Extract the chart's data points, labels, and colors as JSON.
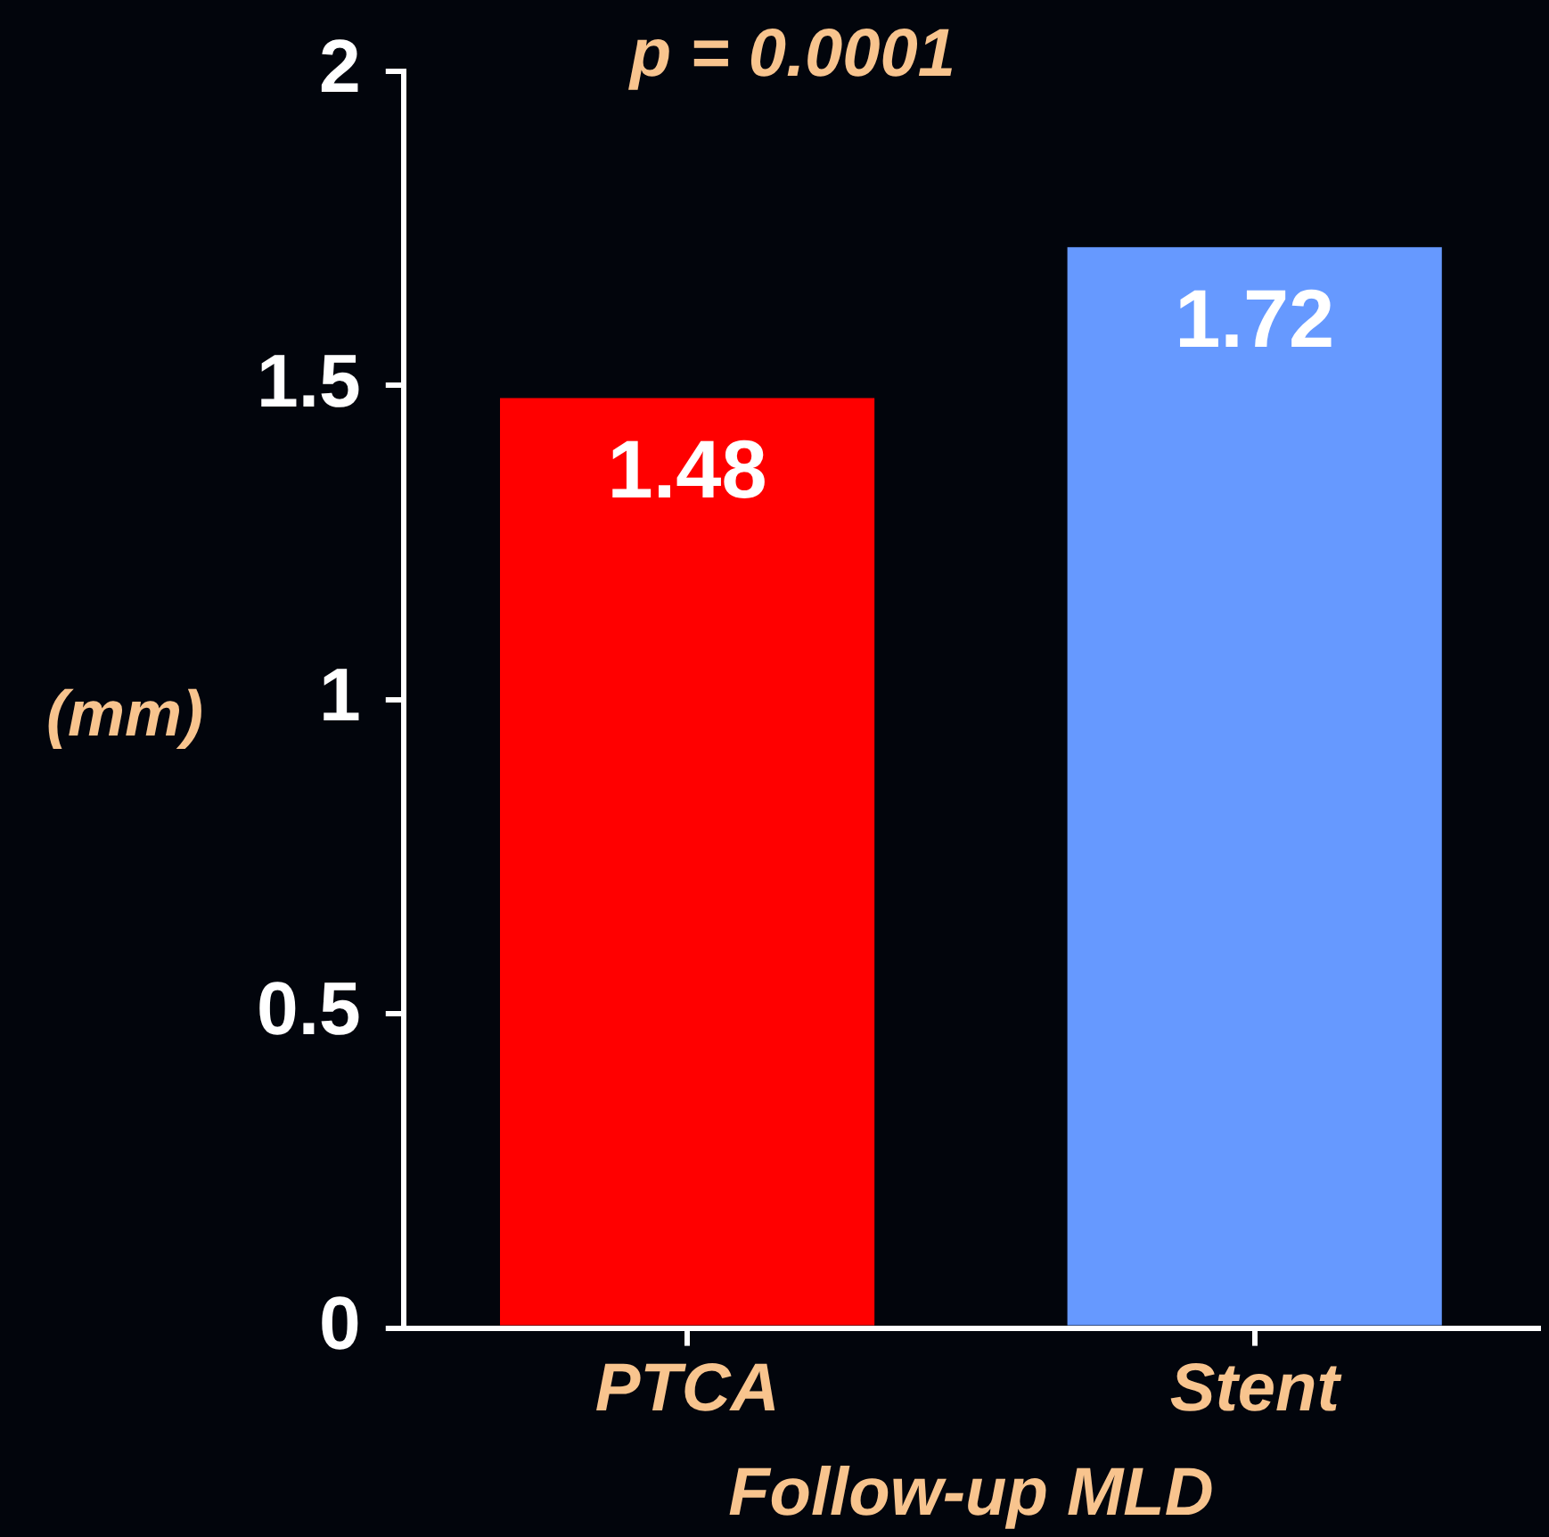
{
  "chart_data": {
    "type": "bar",
    "categories": [
      "PTCA",
      "Stent"
    ],
    "values": [
      1.48,
      1.72
    ],
    "colors": [
      "#ff0000",
      "#6699ff"
    ],
    "xlabel": "Follow-up MLD",
    "ylabel": "(mm)",
    "annotations": [
      "p = 0.0001"
    ],
    "ylim": [
      0,
      2
    ],
    "yticks": [
      0,
      0.5,
      1,
      1.5,
      2
    ],
    "grid": false,
    "legend": false,
    "data_labels": true
  }
}
